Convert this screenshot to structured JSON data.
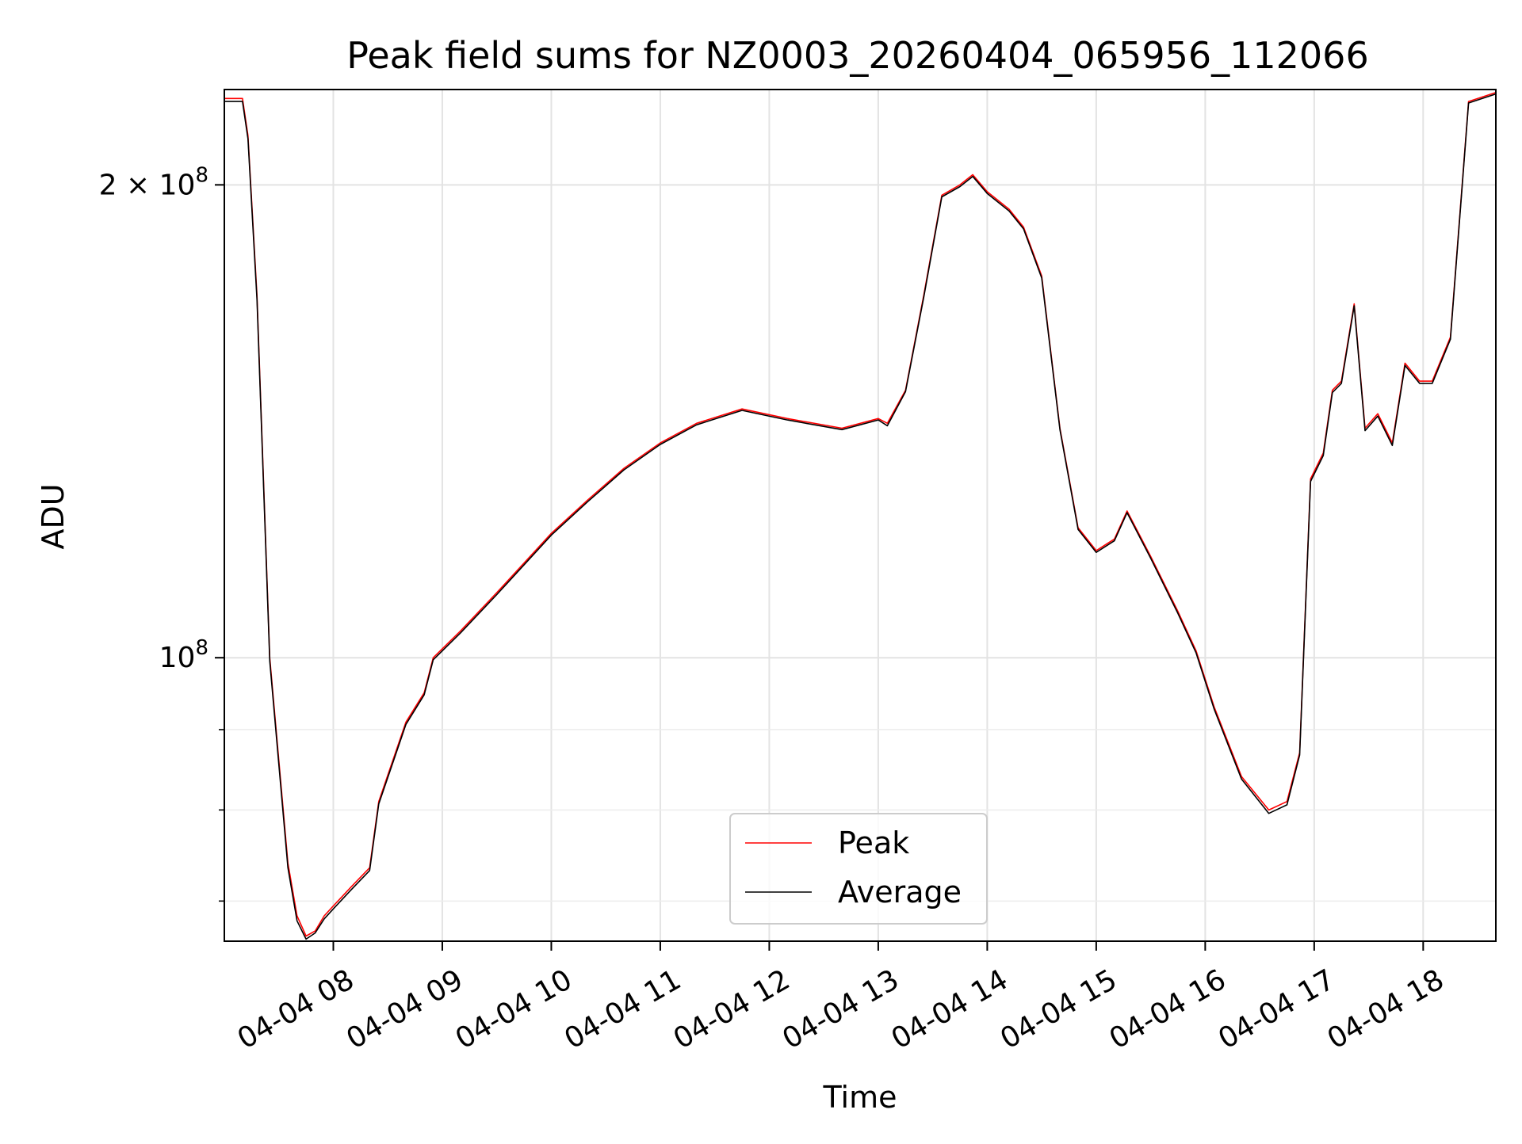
{
  "chart_data": {
    "type": "line",
    "title": "Peak field sums for NZ0003_20260404_065956_112066",
    "xlabel": "Time",
    "ylabel": "ADU",
    "y_scale": "log",
    "ylim": [
      66000000,
      230000000
    ],
    "xlim": [
      "2026-04-04 07:00",
      "2026-04-04 18:40"
    ],
    "grid": true,
    "legend_position": "lower center",
    "x_ticks": [
      {
        "value": "2026-04-04 08:00",
        "label": "04-04 08"
      },
      {
        "value": "2026-04-04 09:00",
        "label": "04-04 09"
      },
      {
        "value": "2026-04-04 10:00",
        "label": "04-04 10"
      },
      {
        "value": "2026-04-04 11:00",
        "label": "04-04 11"
      },
      {
        "value": "2026-04-04 12:00",
        "label": "04-04 12"
      },
      {
        "value": "2026-04-04 13:00",
        "label": "04-04 13"
      },
      {
        "value": "2026-04-04 14:00",
        "label": "04-04 14"
      },
      {
        "value": "2026-04-04 15:00",
        "label": "04-04 15"
      },
      {
        "value": "2026-04-04 16:00",
        "label": "04-04 16"
      },
      {
        "value": "2026-04-04 17:00",
        "label": "04-04 17"
      },
      {
        "value": "2026-04-04 18:00",
        "label": "04-04 18"
      }
    ],
    "y_major_ticks": [
      {
        "value": 100000000,
        "base": "10",
        "exp": "8",
        "mantissa": ""
      },
      {
        "value": 200000000,
        "base": "10",
        "exp": "8",
        "mantissa": "2 × "
      }
    ],
    "y_minor_ticks": [
      70000000,
      80000000,
      90000000
    ],
    "series": [
      {
        "name": "Peak",
        "color": "#ff0000",
        "x": [
          "2026-04-04 07:00",
          "2026-04-04 07:10",
          "2026-04-04 07:13",
          "2026-04-04 07:18",
          "2026-04-04 07:25",
          "2026-04-04 07:35",
          "2026-04-04 07:40",
          "2026-04-04 07:45",
          "2026-04-04 07:50",
          "2026-04-04 07:55",
          "2026-04-04 08:00",
          "2026-04-04 08:10",
          "2026-04-04 08:20",
          "2026-04-04 08:25",
          "2026-04-04 08:40",
          "2026-04-04 08:50",
          "2026-04-04 08:55",
          "2026-04-04 09:10",
          "2026-04-04 09:30",
          "2026-04-04 10:00",
          "2026-04-04 10:20",
          "2026-04-04 10:40",
          "2026-04-04 11:00",
          "2026-04-04 11:20",
          "2026-04-04 11:45",
          "2026-04-04 12:10",
          "2026-04-04 12:40",
          "2026-04-04 13:00",
          "2026-04-04 13:05",
          "2026-04-04 13:15",
          "2026-04-04 13:25",
          "2026-04-04 13:35",
          "2026-04-04 13:45",
          "2026-04-04 13:52",
          "2026-04-04 14:00",
          "2026-04-04 14:12",
          "2026-04-04 14:20",
          "2026-04-04 14:30",
          "2026-04-04 14:40",
          "2026-04-04 14:50",
          "2026-04-04 15:00",
          "2026-04-04 15:10",
          "2026-04-04 15:17",
          "2026-04-04 15:30",
          "2026-04-04 15:45",
          "2026-04-04 15:55",
          "2026-04-04 16:05",
          "2026-04-04 16:20",
          "2026-04-04 16:35",
          "2026-04-04 16:45",
          "2026-04-04 16:52",
          "2026-04-04 16:58",
          "2026-04-04 17:05",
          "2026-04-04 17:10",
          "2026-04-04 17:15",
          "2026-04-04 17:22",
          "2026-04-04 17:28",
          "2026-04-04 17:35",
          "2026-04-04 17:43",
          "2026-04-04 17:50",
          "2026-04-04 17:58",
          "2026-04-04 18:05",
          "2026-04-04 18:15",
          "2026-04-04 18:25",
          "2026-04-04 18:40"
        ],
        "values": [
          227000000,
          227000000,
          215000000,
          170000000,
          100000000,
          74000000,
          68500000,
          66500000,
          67000000,
          68500000,
          69500000,
          71500000,
          73500000,
          81000000,
          91000000,
          95000000,
          100000000,
          104000000,
          110000000,
          120000000,
          126000000,
          132000000,
          137000000,
          141000000,
          144000000,
          142000000,
          140000000,
          142000000,
          141000000,
          148000000,
          170000000,
          197000000,
          200000000,
          203000000,
          198000000,
          193000000,
          188000000,
          175000000,
          140000000,
          121000000,
          117000000,
          119000000,
          124000000,
          116000000,
          107000000,
          101000000,
          93000000,
          84000000,
          80000000,
          81000000,
          87000000,
          130000000,
          135000000,
          148000000,
          150000000,
          168000000,
          140000000,
          143000000,
          137000000,
          154000000,
          150000000,
          150000000,
          160000000,
          226000000,
          229000000
        ]
      },
      {
        "name": "Average",
        "color": "#000000",
        "x": [
          "2026-04-04 07:00",
          "2026-04-04 07:10",
          "2026-04-04 07:13",
          "2026-04-04 07:18",
          "2026-04-04 07:25",
          "2026-04-04 07:35",
          "2026-04-04 07:40",
          "2026-04-04 07:45",
          "2026-04-04 07:50",
          "2026-04-04 07:55",
          "2026-04-04 08:00",
          "2026-04-04 08:10",
          "2026-04-04 08:20",
          "2026-04-04 08:25",
          "2026-04-04 08:40",
          "2026-04-04 08:50",
          "2026-04-04 08:55",
          "2026-04-04 09:10",
          "2026-04-04 09:30",
          "2026-04-04 10:00",
          "2026-04-04 10:20",
          "2026-04-04 10:40",
          "2026-04-04 11:00",
          "2026-04-04 11:20",
          "2026-04-04 11:45",
          "2026-04-04 12:10",
          "2026-04-04 12:40",
          "2026-04-04 13:00",
          "2026-04-04 13:05",
          "2026-04-04 13:15",
          "2026-04-04 13:25",
          "2026-04-04 13:35",
          "2026-04-04 13:45",
          "2026-04-04 13:52",
          "2026-04-04 14:00",
          "2026-04-04 14:12",
          "2026-04-04 14:20",
          "2026-04-04 14:30",
          "2026-04-04 14:40",
          "2026-04-04 14:50",
          "2026-04-04 15:00",
          "2026-04-04 15:10",
          "2026-04-04 15:17",
          "2026-04-04 15:30",
          "2026-04-04 15:45",
          "2026-04-04 15:55",
          "2026-04-04 16:05",
          "2026-04-04 16:20",
          "2026-04-04 16:35",
          "2026-04-04 16:45",
          "2026-04-04 16:52",
          "2026-04-04 16:58",
          "2026-04-04 17:05",
          "2026-04-04 17:10",
          "2026-04-04 17:15",
          "2026-04-04 17:22",
          "2026-04-04 17:28",
          "2026-04-04 17:35",
          "2026-04-04 17:43",
          "2026-04-04 17:50",
          "2026-04-04 17:58",
          "2026-04-04 18:05",
          "2026-04-04 18:15",
          "2026-04-04 18:25",
          "2026-04-04 18:40"
        ],
        "values": [
          226000000,
          226000000,
          214000000,
          169000000,
          99500000,
          73500000,
          68000000,
          66200000,
          66800000,
          68200000,
          69200000,
          71200000,
          73200000,
          80700000,
          90700000,
          94700000,
          99700000,
          103700000,
          109700000,
          119700000,
          125700000,
          131700000,
          136700000,
          140700000,
          143700000,
          141700000,
          139700000,
          141700000,
          140500000,
          147700000,
          169500000,
          196500000,
          199500000,
          202500000,
          197500000,
          192500000,
          187500000,
          174500000,
          139700000,
          120700000,
          116700000,
          118700000,
          123700000,
          115700000,
          106700000,
          100700000,
          92700000,
          83700000,
          79600000,
          80600000,
          86700000,
          129500000,
          134500000,
          147500000,
          149500000,
          167500000,
          139500000,
          142500000,
          136500000,
          153500000,
          149500000,
          149500000,
          159500000,
          225500000,
          228500000
        ]
      }
    ]
  }
}
